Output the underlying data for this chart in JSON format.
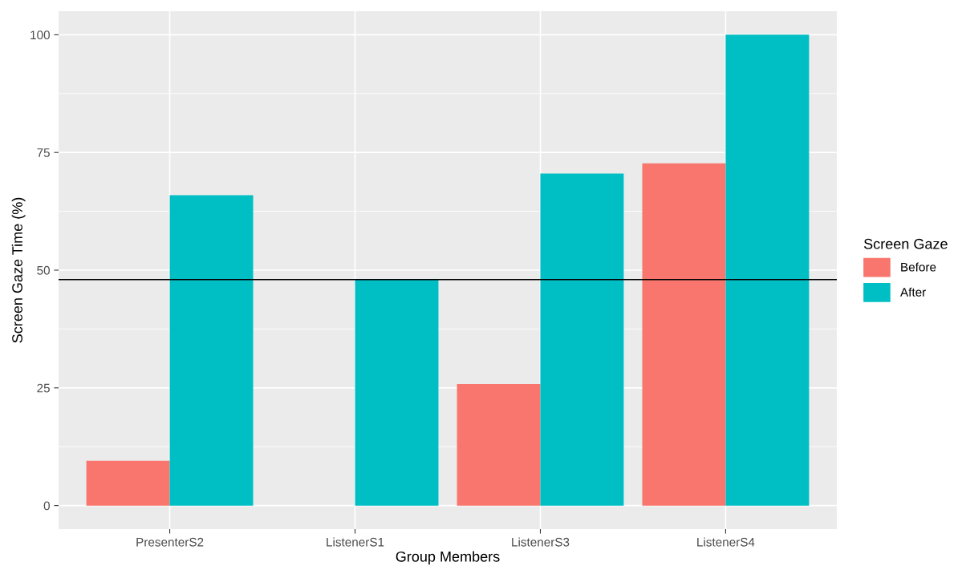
{
  "chart_data": {
    "type": "bar",
    "xlabel": "Group Members",
    "ylabel": "Screen Gaze Time (%)",
    "legend_title": "Screen Gaze",
    "categories": [
      "PresenterS2",
      "ListenerS1",
      "ListenerS3",
      "ListenerS4"
    ],
    "series": [
      {
        "name": "Before",
        "color": "#f8766d",
        "values": [
          9.5,
          0,
          25.8,
          72.7
        ]
      },
      {
        "name": "After",
        "color": "#00bfc4",
        "values": [
          65.9,
          48.0,
          70.5,
          100
        ]
      }
    ],
    "ylim": [
      -5,
      105
    ],
    "yticks": [
      0,
      25,
      50,
      75,
      100
    ],
    "ref_lines": [
      {
        "axis": "y",
        "value": 48.0,
        "color": "#000000"
      }
    ],
    "grid": true,
    "legend": "right"
  }
}
